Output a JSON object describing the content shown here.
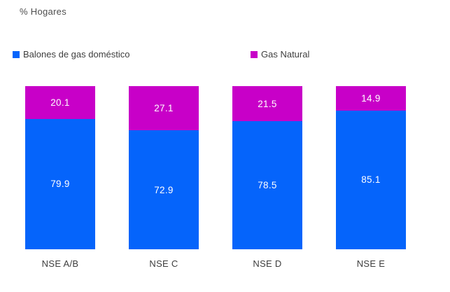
{
  "title": "% Hogares",
  "legend": {
    "items": [
      {
        "label": "Balones de gas doméstico",
        "color": "#0564FB"
      },
      {
        "label": "Gas Natural",
        "color": "#C800C8"
      }
    ],
    "position": "top"
  },
  "colors": {
    "blue_series": "#0564FB",
    "magenta_series": "#C800C8",
    "value_label": "#FFFFFF",
    "axis_text": "#3D3D3D",
    "title_text": "#4D4D4D",
    "background": "#FFFFFF"
  },
  "chart_data": {
    "type": "bar",
    "stacked": true,
    "stacked_total": 100,
    "title": "% Hogares",
    "xlabel": "",
    "ylabel": "% Hogares",
    "ylim": [
      0,
      100
    ],
    "grid": false,
    "legend_position": "top",
    "categories": [
      "NSE A/B",
      "NSE C",
      "NSE D",
      "NSE E"
    ],
    "series": [
      {
        "name": "Balones de gas doméstico",
        "color": "#0564FB",
        "values": [
          79.9,
          72.9,
          78.5,
          85.1
        ]
      },
      {
        "name": "Gas Natural",
        "color": "#C800C8",
        "values": [
          20.1,
          27.1,
          21.5,
          14.9
        ]
      }
    ],
    "value_labels": "centered-in-segment"
  }
}
